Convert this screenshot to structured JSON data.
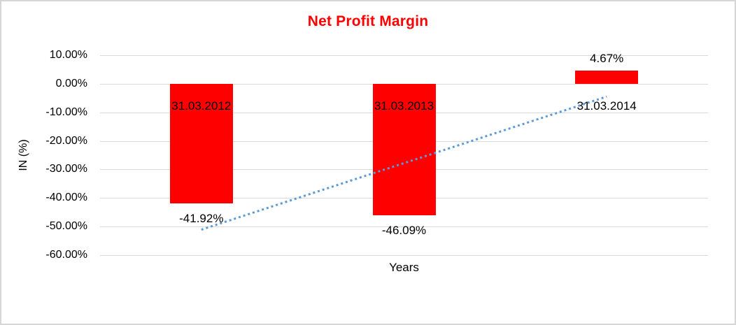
{
  "window": {
    "background": "#FFFFFF",
    "frame_border_color": "#D6D6D6"
  },
  "chart_data": {
    "type": "bar",
    "title": "Net Profit Margin",
    "title_color": "#FF0000",
    "xlabel": "Years",
    "ylabel": "IN (%)",
    "categories": [
      "31.03.2012",
      "31.03.2013",
      "31.03.2014"
    ],
    "values": [
      -41.92,
      -46.09,
      4.67
    ],
    "value_labels": [
      "-41.92%",
      "-46.09%",
      "4.67%"
    ],
    "bar_color": "#FF0000",
    "text_color": "#000000",
    "ylim": [
      -60,
      10
    ],
    "yticks": [
      {
        "value": 10,
        "label": "10.00%"
      },
      {
        "value": 0,
        "label": "0.00%"
      },
      {
        "value": -10,
        "label": "-10.00%"
      },
      {
        "value": -20,
        "label": "-20.00%"
      },
      {
        "value": -30,
        "label": "-30.00%"
      },
      {
        "value": -40,
        "label": "-40.00%"
      },
      {
        "value": -50,
        "label": "-50.00%"
      },
      {
        "value": -60,
        "label": "-60.00%"
      }
    ],
    "grid": true,
    "gridline_color": "#D9D9D9",
    "legend": "none",
    "trendline": {
      "type": "linear",
      "style": "dotted",
      "color": "#5B9BD5",
      "start_value": -51.1,
      "end_value": -4.5
    }
  }
}
